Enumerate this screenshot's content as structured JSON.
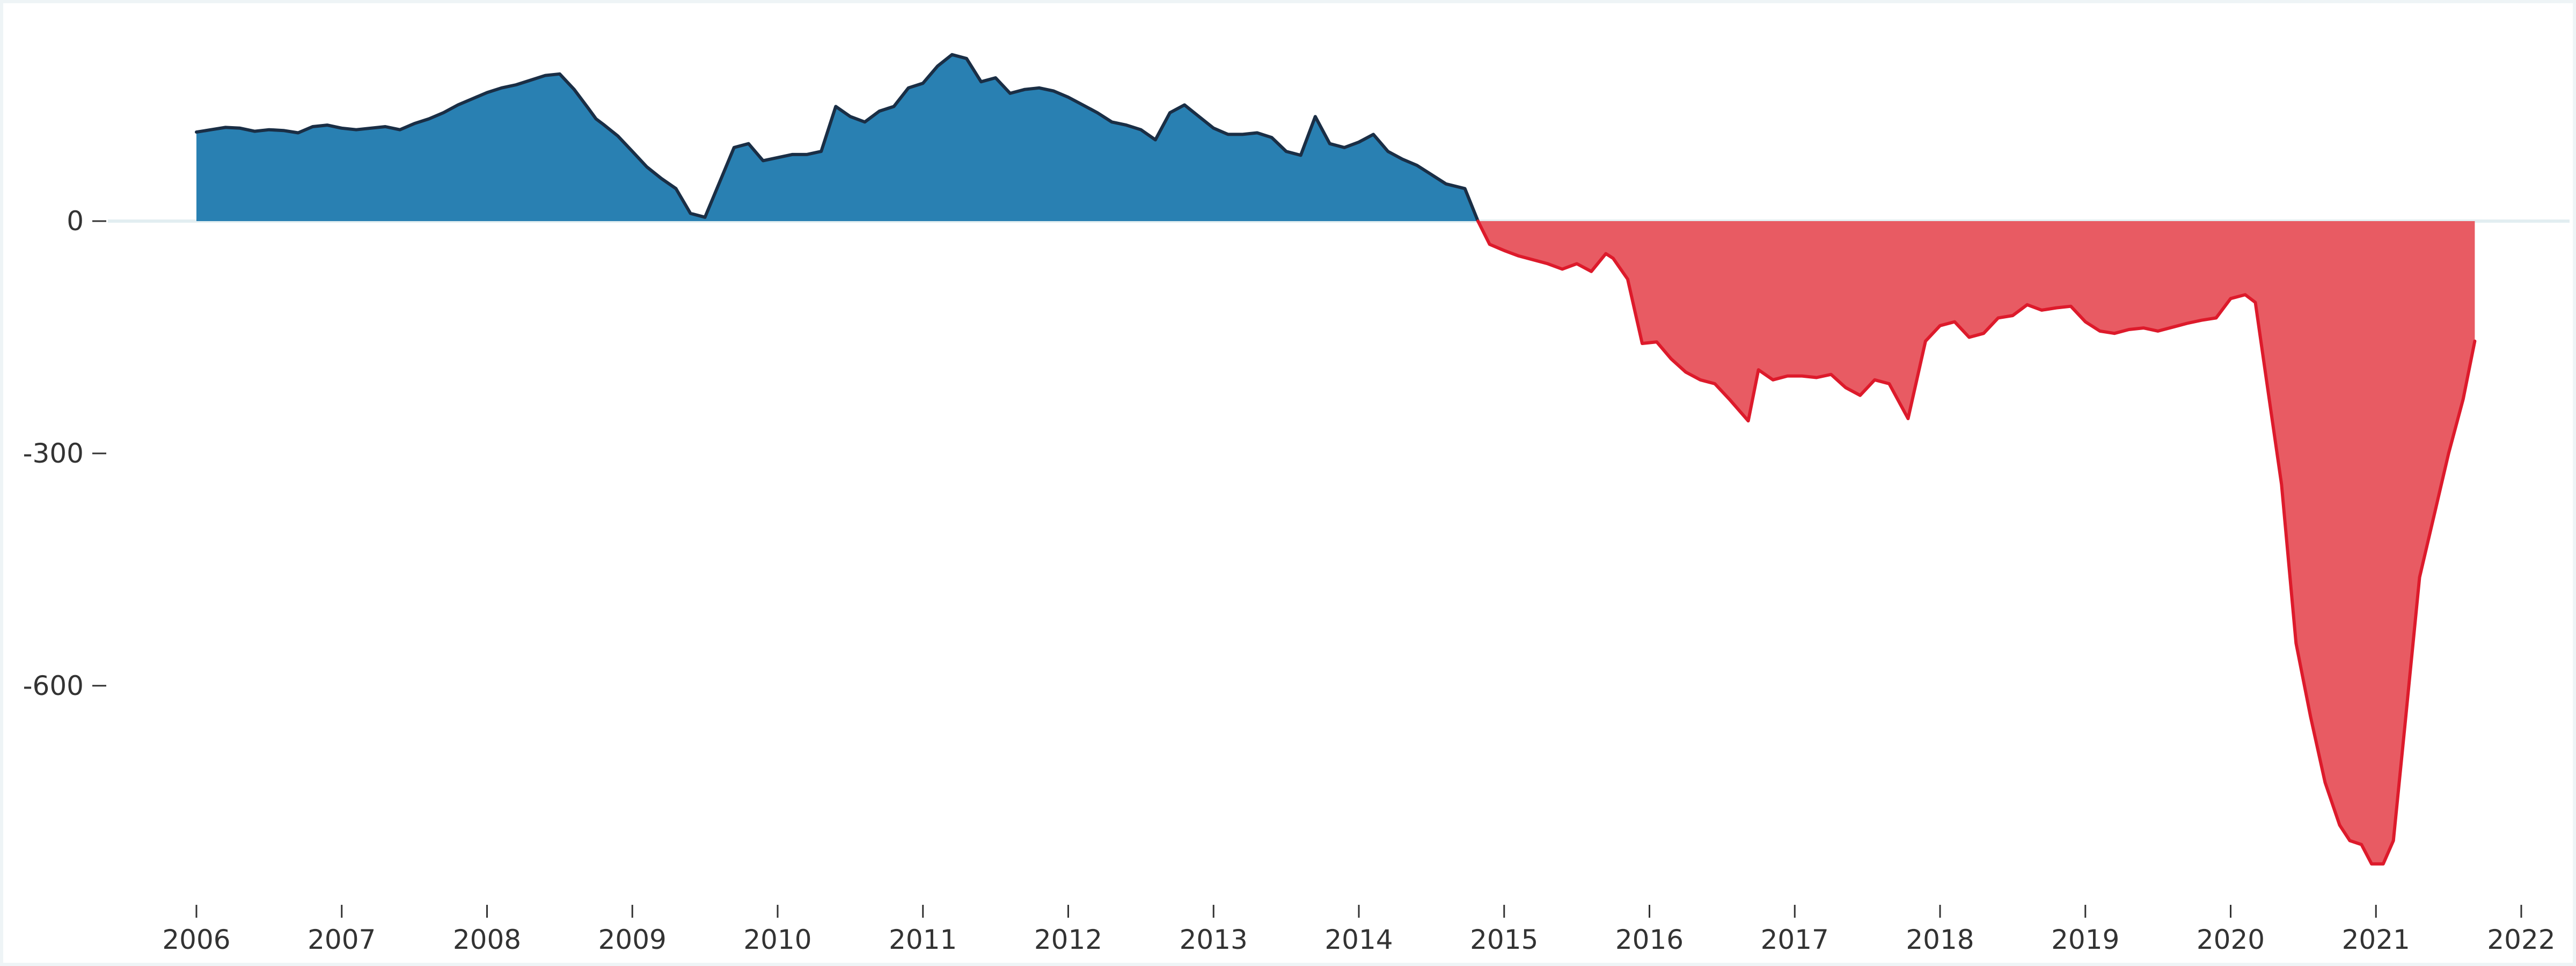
{
  "chart_data": {
    "type": "area",
    "title": "",
    "xlabel": "",
    "ylabel": "",
    "x_ticks": [
      "2006",
      "2007",
      "2008",
      "2009",
      "2010",
      "2011",
      "2012",
      "2013",
      "2014",
      "2015",
      "2016",
      "2017",
      "2018",
      "2019",
      "2020",
      "2021",
      "2022"
    ],
    "y_ticks": [
      0,
      -300,
      -600
    ],
    "xlim": [
      2006,
      2022
    ],
    "ylim": [
      -840,
      290
    ],
    "colors": {
      "positive_fill": "#2980b2",
      "positive_line": "#1a2e45",
      "negative_fill": "#e85b63",
      "negative_line": "#dd1a2b",
      "zero_line": "#e2eef1"
    },
    "series": [
      {
        "x": [
          2006.0,
          2006.1,
          2006.2,
          2006.3,
          2006.4,
          2006.5,
          2006.6,
          2006.7,
          2006.8,
          2006.9,
          2007.0,
          2007.1,
          2007.2,
          2007.3,
          2007.4,
          2007.5,
          2007.6,
          2007.7,
          2007.8,
          2007.9,
          2008.0,
          2008.1,
          2008.2,
          2008.3,
          2008.4,
          2008.5,
          2008.6,
          2008.7,
          2008.75,
          2008.8,
          2008.9,
          2009.0,
          2009.1,
          2009.2,
          2009.3,
          2009.4,
          2009.5,
          2009.6,
          2009.7,
          2009.8,
          2009.9,
          2010.0,
          2010.1,
          2010.2,
          2010.3,
          2010.4,
          2010.5,
          2010.6,
          2010.7,
          2010.8,
          2010.9,
          2011.0,
          2011.1,
          2011.2,
          2011.3,
          2011.4,
          2011.5,
          2011.6,
          2011.7,
          2011.8,
          2011.9,
          2012.0,
          2012.1,
          2012.2,
          2012.3,
          2012.4,
          2012.5,
          2012.6,
          2012.7,
          2012.8,
          2012.9,
          2013.0,
          2013.1,
          2013.2,
          2013.3,
          2013.4,
          2013.5,
          2013.6,
          2013.7,
          2013.8,
          2013.9,
          2014.0,
          2014.1,
          2014.2,
          2014.3,
          2014.4,
          2014.5,
          2014.6,
          2014.73,
          2014.82
        ],
        "values": [
          115,
          118,
          121,
          120,
          116,
          118,
          117,
          114,
          122,
          124,
          120,
          118,
          120,
          122,
          118,
          126,
          132,
          140,
          150,
          158,
          166,
          172,
          176,
          182,
          188,
          190,
          170,
          145,
          132,
          125,
          110,
          90,
          70,
          55,
          42,
          10,
          5,
          50,
          95,
          100,
          78,
          82,
          86,
          86,
          90,
          148,
          135,
          128,
          142,
          148,
          172,
          178,
          200,
          215,
          210,
          180,
          185,
          165,
          170,
          172,
          168,
          160,
          150,
          140,
          128,
          124,
          118,
          105,
          140,
          150,
          135,
          120,
          112,
          112,
          114,
          108,
          90,
          85,
          135,
          100,
          95,
          102,
          112,
          90,
          80,
          72,
          60,
          48,
          42,
          0
        ]
      },
      {
        "x": [
          2014.82,
          2014.9,
          2015.0,
          2015.1,
          2015.2,
          2015.3,
          2015.4,
          2015.5,
          2015.6,
          2015.7,
          2015.75,
          2015.85,
          2015.95,
          2016.05,
          2016.15,
          2016.25,
          2016.35,
          2016.45,
          2016.55,
          2016.68,
          2016.75,
          2016.85,
          2016.95,
          2017.05,
          2017.15,
          2017.25,
          2017.35,
          2017.45,
          2017.55,
          2017.65,
          2017.78,
          2017.9,
          2018.0,
          2018.1,
          2018.2,
          2018.3,
          2018.4,
          2018.5,
          2018.6,
          2018.7,
          2018.8,
          2018.9,
          2019.0,
          2019.1,
          2019.2,
          2019.3,
          2019.4,
          2019.5,
          2019.6,
          2019.7,
          2019.8,
          2019.9,
          2020.0,
          2020.1,
          2020.17,
          2020.25,
          2020.35,
          2020.45,
          2020.55,
          2020.65,
          2020.75,
          2020.82,
          2020.9,
          2020.97,
          2021.05,
          2021.12,
          2021.2,
          2021.3,
          2021.4,
          2021.5,
          2021.6,
          2021.68
        ],
        "values": [
          0,
          -30,
          -38,
          -45,
          -50,
          -55,
          -62,
          -55,
          -65,
          -42,
          -48,
          -75,
          -158,
          -156,
          -178,
          -195,
          -205,
          -210,
          -230,
          -258,
          -192,
          -205,
          -200,
          -200,
          -202,
          -198,
          -215,
          -225,
          -205,
          -210,
          -255,
          -155,
          -135,
          -130,
          -150,
          -145,
          -125,
          -122,
          -108,
          -115,
          -112,
          -110,
          -130,
          -142,
          -145,
          -140,
          -138,
          -142,
          -137,
          -132,
          -128,
          -125,
          -100,
          -95,
          -105,
          -210,
          -340,
          -545,
          -640,
          -725,
          -780,
          -800,
          -805,
          -830,
          -830,
          -800,
          -650,
          -460,
          -380,
          -300,
          -230,
          -155
        ]
      }
    ]
  }
}
